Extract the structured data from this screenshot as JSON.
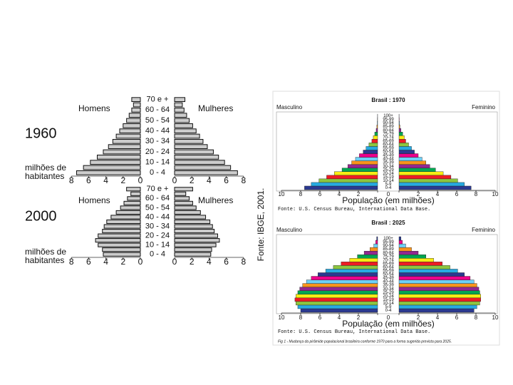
{
  "chart_data": [
    {
      "type": "pyramid",
      "title": "1960",
      "xlabel": [
        "milhões de",
        "habitantes"
      ],
      "categories": [
        "0 - 4",
        null,
        "10 - 14",
        null,
        "20 - 24",
        null,
        "30 - 34",
        null,
        "40 - 44",
        null,
        "50 - 54",
        null,
        "60 - 64",
        null,
        "70 e +"
      ],
      "series": [
        {
          "name": "Homens",
          "color": "#cccccc",
          "values": [
            7.4,
            6.6,
            5.8,
            5.0,
            4.3,
            3.7,
            3.2,
            2.8,
            2.4,
            2.0,
            1.6,
            1.3,
            1.0,
            0.8,
            1.0
          ]
        },
        {
          "name": "Mulheres",
          "color": "#cccccc",
          "values": [
            7.3,
            6.5,
            5.8,
            5.1,
            4.5,
            3.8,
            3.3,
            2.9,
            2.5,
            2.1,
            1.7,
            1.4,
            1.1,
            0.9,
            1.2
          ]
        }
      ],
      "xlim": [
        0,
        8
      ],
      "xticks": [
        0,
        2,
        4,
        6,
        8
      ]
    },
    {
      "type": "pyramid",
      "title": "2000",
      "xlabel": [
        "milhões de",
        "habitantes"
      ],
      "source": "Fonte: IBGE, 2001.",
      "categories": [
        "0 - 4",
        null,
        "10 - 14",
        null,
        "20 - 24",
        null,
        "30 - 34",
        null,
        "40 - 44",
        null,
        "50 - 54",
        null,
        "60 - 64",
        null,
        "70 e +"
      ],
      "series": [
        {
          "name": "Homens",
          "color": "#cccccc",
          "values": [
            4.3,
            4.4,
            4.9,
            5.2,
            4.9,
            4.4,
            4.2,
            3.9,
            3.4,
            2.8,
            2.3,
            1.9,
            1.5,
            1.1,
            1.6
          ]
        },
        {
          "name": "Mulheres",
          "color": "#cccccc",
          "values": [
            4.2,
            4.3,
            4.8,
            5.2,
            5.0,
            4.6,
            4.4,
            4.1,
            3.6,
            3.0,
            2.5,
            2.1,
            1.7,
            1.3,
            2.1
          ]
        }
      ],
      "xlim": [
        0,
        8
      ],
      "xticks": [
        0,
        2,
        4,
        6,
        8
      ]
    },
    {
      "type": "pyramid-color",
      "title": "Brasil : 1970",
      "xlabel": "População (em milhões)",
      "source": "Fonte: U.S. Census Bureau, International Data Base.",
      "categories": [
        "0-4",
        "5-9",
        "10-14",
        "15-19",
        "20-24",
        "25-29",
        "30-34",
        "35-39",
        "40-44",
        "45-49",
        "50-54",
        "55-59",
        "60-64",
        "65-69",
        "70-74",
        "75-79",
        "80-84",
        "85-89",
        "90-94",
        "95-99",
        "100+"
      ],
      "bar_colors": [
        "#2b3990",
        "#27aae1",
        "#8dc63f",
        "#ed1c24",
        "#f7ec13",
        "#00a651",
        "#92278f",
        "#f7941d",
        "#6dcff6",
        "#ec008c",
        "#2b3990",
        "#27aae1",
        "#8dc63f",
        "#ed1c24",
        "#f7ec13",
        "#00a651",
        "#92278f",
        "#f7941d",
        "#6dcff6",
        "#ec008c",
        "#2b3990"
      ],
      "series": [
        {
          "name": "Masculino",
          "values": [
            7.6,
            6.9,
            6.1,
            5.3,
            4.5,
            3.7,
            3.1,
            2.7,
            2.3,
            1.9,
            1.5,
            1.2,
            0.9,
            0.6,
            0.45,
            0.3,
            0.15,
            0.08,
            0.04,
            0.02,
            0.01
          ]
        },
        {
          "name": "Feminino",
          "values": [
            7.5,
            6.8,
            6.1,
            5.4,
            4.6,
            3.8,
            3.2,
            2.8,
            2.4,
            2.0,
            1.6,
            1.3,
            1.0,
            0.7,
            0.55,
            0.38,
            0.2,
            0.1,
            0.05,
            0.03,
            0.01
          ]
        }
      ],
      "xlim": [
        0,
        10
      ],
      "xticks": [
        0,
        2,
        4,
        6,
        8,
        10
      ]
    },
    {
      "type": "pyramid-color",
      "title": "Brasil : 2025",
      "xlabel": "População (em milhões)",
      "source": "Fonte: U.S. Census Bureau, International Data Base.",
      "categories": [
        "0-4",
        "5-9",
        "10-14",
        "15-19",
        "20-24",
        "25-29",
        "30-34",
        "35-39",
        "40-44",
        "45-49",
        "50-54",
        "55-59",
        "60-64",
        "65-69",
        "70-74",
        "75-79",
        "80-84",
        "85-89",
        "90-94",
        "95-99",
        "100+"
      ],
      "bar_colors": [
        "#2b3990",
        "#27aae1",
        "#8dc63f",
        "#ed1c24",
        "#f7ec13",
        "#00a651",
        "#92278f",
        "#f7941d",
        "#6dcff6",
        "#ec008c",
        "#2b3990",
        "#27aae1",
        "#8dc63f",
        "#ed1c24",
        "#f7ec13",
        "#00a651",
        "#92278f",
        "#f7941d",
        "#6dcff6",
        "#ec008c",
        "#2b3990"
      ],
      "series": [
        {
          "name": "Masculino",
          "values": [
            8.0,
            8.3,
            8.5,
            8.6,
            8.5,
            8.3,
            8.1,
            7.8,
            7.4,
            6.9,
            6.2,
            5.4,
            4.6,
            3.8,
            2.9,
            2.1,
            1.4,
            0.8,
            0.4,
            0.2,
            0.1
          ]
        },
        {
          "name": "Feminino",
          "values": [
            7.8,
            8.1,
            8.4,
            8.5,
            8.5,
            8.4,
            8.3,
            8.1,
            7.8,
            7.4,
            6.8,
            6.1,
            5.3,
            4.5,
            3.6,
            2.8,
            2.0,
            1.3,
            0.7,
            0.35,
            0.2
          ]
        }
      ],
      "xlim": [
        0,
        10
      ],
      "xticks": [
        0,
        2,
        4,
        6,
        8,
        10
      ]
    }
  ],
  "caption": "Fig 1 - Mudança da pirâmide populacional brasileira conforme 1970 para a forma sugerida prevista para 2025."
}
